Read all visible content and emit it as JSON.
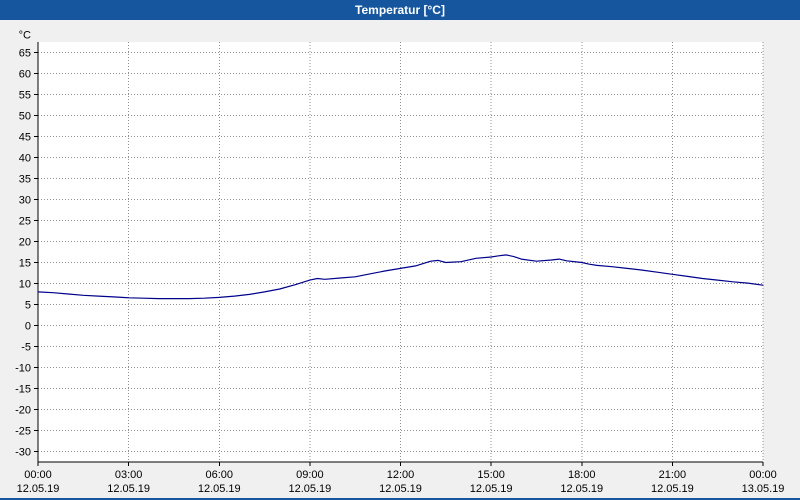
{
  "window": {
    "title": "Temperatur [°C]"
  },
  "colors": {
    "titlebar_bg": "#15569e",
    "titlebar_text": "#ffffff",
    "bottom_strip": "#15569e",
    "outer_bg": "#f0f0f0",
    "plot_bg": "#ffffff",
    "grid": "#909090",
    "axis": "#000000",
    "line": "#00008b"
  },
  "chart_data": {
    "type": "line",
    "title": "Temperatur [°C]",
    "ylabel": "°C",
    "ylim": [
      -32.5,
      67.5
    ],
    "y_ticks": [
      65,
      60,
      55,
      50,
      45,
      40,
      35,
      30,
      25,
      20,
      15,
      10,
      5,
      0,
      -5,
      -10,
      -15,
      -20,
      -25,
      -30
    ],
    "grid": "dotted",
    "legend_position": "none",
    "x_hours_range": [
      0,
      24
    ],
    "x_ticks": [
      {
        "hour": 0,
        "time": "00:00",
        "date": "12.05.19"
      },
      {
        "hour": 3,
        "time": "03:00",
        "date": "12.05.19"
      },
      {
        "hour": 6,
        "time": "06:00",
        "date": "12.05.19"
      },
      {
        "hour": 9,
        "time": "09:00",
        "date": "12.05.19"
      },
      {
        "hour": 12,
        "time": "12:00",
        "date": "12.05.19"
      },
      {
        "hour": 15,
        "time": "15:00",
        "date": "12.05.19"
      },
      {
        "hour": 18,
        "time": "18:00",
        "date": "12.05.19"
      },
      {
        "hour": 21,
        "time": "21:00",
        "date": "12.05.19"
      },
      {
        "hour": 24,
        "time": "00:00",
        "date": "13.05.19"
      }
    ],
    "series": [
      {
        "name": "Temperatur",
        "color": "#00008b",
        "x": [
          0,
          0.5,
          1,
          1.5,
          2,
          2.5,
          3,
          3.5,
          4,
          4.5,
          5,
          5.5,
          6,
          6.5,
          7,
          7.5,
          8,
          8.5,
          9,
          9.25,
          9.5,
          10,
          10.5,
          11,
          11.5,
          12,
          12.5,
          13,
          13.25,
          13.5,
          14,
          14.5,
          15,
          15.25,
          15.5,
          15.75,
          16,
          16.5,
          17,
          17.25,
          17.5,
          18,
          18.25,
          18.5,
          19,
          19.5,
          20,
          20.5,
          21,
          21.5,
          22,
          22.5,
          23,
          23.5,
          24
        ],
        "y": [
          8.0,
          7.8,
          7.5,
          7.2,
          7.0,
          6.8,
          6.6,
          6.5,
          6.4,
          6.4,
          6.4,
          6.5,
          6.7,
          7.0,
          7.4,
          8.0,
          8.7,
          9.7,
          10.8,
          11.2,
          11.0,
          11.3,
          11.6,
          12.3,
          13.0,
          13.6,
          14.2,
          15.3,
          15.5,
          15.0,
          15.2,
          16.0,
          16.3,
          16.6,
          16.8,
          16.4,
          15.8,
          15.3,
          15.6,
          15.8,
          15.4,
          15.0,
          14.6,
          14.3,
          14.0,
          13.6,
          13.2,
          12.7,
          12.2,
          11.7,
          11.2,
          10.8,
          10.4,
          10.1,
          9.6
        ]
      }
    ]
  }
}
